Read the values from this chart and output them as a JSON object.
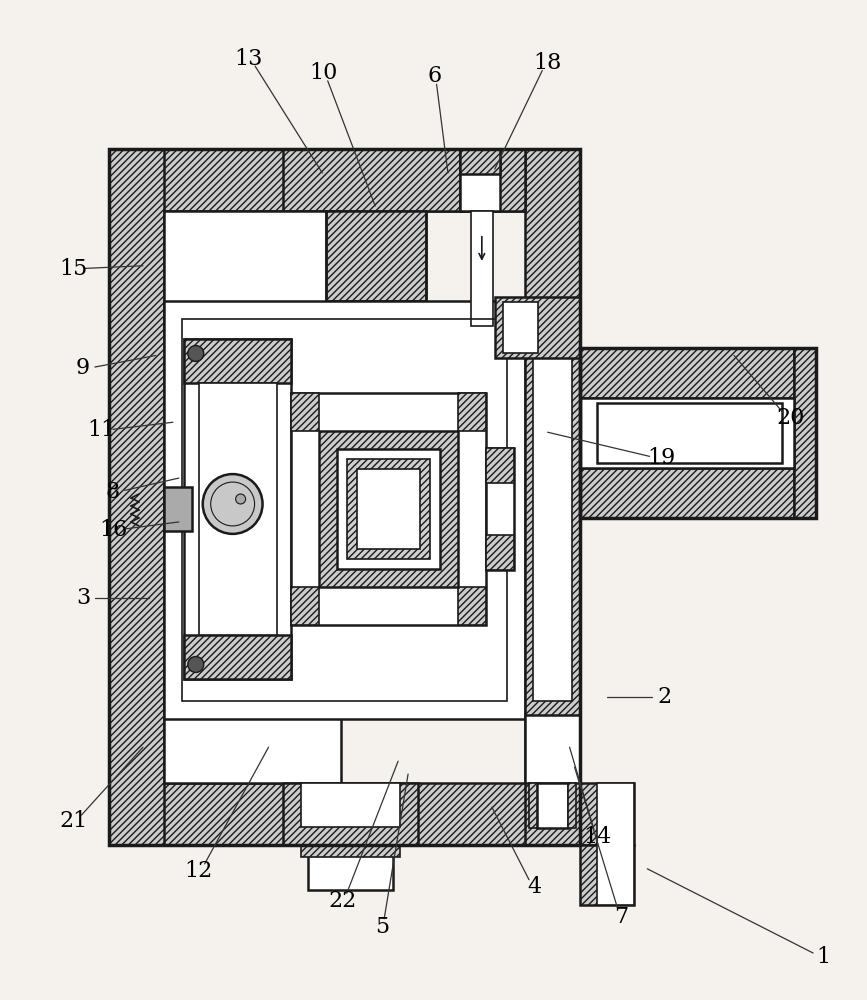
{
  "bg": "#f5f2ee",
  "lc": "#1a1a1a",
  "hc": "#cccccc",
  "wc": "#ffffff",
  "figsize": [
    8.67,
    10.0
  ],
  "dpi": 100,
  "labels": [
    [
      "1",
      825,
      958
    ],
    [
      "2",
      665,
      698
    ],
    [
      "3",
      82,
      598
    ],
    [
      "4",
      535,
      888
    ],
    [
      "5",
      382,
      928
    ],
    [
      "6",
      435,
      75
    ],
    [
      "7",
      622,
      918
    ],
    [
      "8",
      112,
      492
    ],
    [
      "9",
      82,
      368
    ],
    [
      "10",
      323,
      72
    ],
    [
      "11",
      100,
      430
    ],
    [
      "12",
      198,
      872
    ],
    [
      "13",
      248,
      58
    ],
    [
      "14",
      598,
      838
    ],
    [
      "15",
      72,
      268
    ],
    [
      "16",
      112,
      530
    ],
    [
      "18",
      548,
      62
    ],
    [
      "19",
      662,
      458
    ],
    [
      "20",
      792,
      418
    ],
    [
      "21",
      72,
      822
    ],
    [
      "22",
      342,
      902
    ]
  ],
  "leader_lines": [
    [
      825,
      958,
      648,
      870
    ],
    [
      665,
      698,
      608,
      698
    ],
    [
      82,
      598,
      148,
      598
    ],
    [
      535,
      888,
      492,
      808
    ],
    [
      382,
      928,
      408,
      775
    ],
    [
      435,
      75,
      448,
      172
    ],
    [
      622,
      918,
      575,
      768
    ],
    [
      112,
      492,
      178,
      478
    ],
    [
      82,
      368,
      155,
      355
    ],
    [
      323,
      72,
      375,
      205
    ],
    [
      100,
      430,
      172,
      422
    ],
    [
      198,
      872,
      268,
      748
    ],
    [
      248,
      58,
      322,
      172
    ],
    [
      598,
      838,
      570,
      748
    ],
    [
      72,
      268,
      142,
      265
    ],
    [
      112,
      530,
      178,
      522
    ],
    [
      548,
      62,
      495,
      168
    ],
    [
      662,
      458,
      548,
      432
    ],
    [
      792,
      418,
      735,
      355
    ],
    [
      72,
      822,
      142,
      748
    ],
    [
      342,
      902,
      398,
      762
    ]
  ]
}
